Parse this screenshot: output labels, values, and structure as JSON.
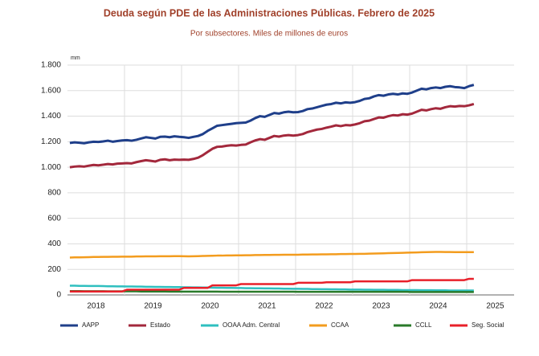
{
  "chart_data": {
    "type": "line",
    "title": "Deuda según PDE de las Administraciones Públicas. Febrero de 2025",
    "subtitle": "Por subsectores. Miles de millones de euros",
    "y_unit": "mm",
    "categories": [
      null,
      null,
      null,
      null,
      null,
      null,
      "2018",
      null,
      null,
      null,
      null,
      null,
      null,
      null,
      null,
      null,
      null,
      null,
      "2019",
      null,
      null,
      null,
      null,
      null,
      null,
      null,
      null,
      null,
      null,
      null,
      "2020",
      null,
      null,
      null,
      null,
      null,
      null,
      null,
      null,
      null,
      null,
      null,
      "2021",
      null,
      null,
      null,
      null,
      null,
      null,
      null,
      null,
      null,
      null,
      null,
      "2022",
      null,
      null,
      null,
      null,
      null,
      null,
      null,
      null,
      null,
      null,
      null,
      "2023",
      null,
      null,
      null,
      null,
      null,
      null,
      null,
      null,
      null,
      null,
      null,
      "2024",
      null,
      null,
      null,
      null,
      null,
      null,
      null,
      null,
      null,
      null,
      null,
      "2025",
      null,
      null,
      null,
      null,
      null
    ],
    "series": [
      {
        "name": "AAPP",
        "color": "#1f3f8a",
        "values": [
          1190,
          1195,
          1192,
          1188,
          1195,
          1200,
          1198,
          1202,
          1208,
          1200,
          1205,
          1210,
          1212,
          1208,
          1215,
          1225,
          1235,
          1230,
          1225,
          1238,
          1240,
          1235,
          1242,
          1238,
          1235,
          1230,
          1238,
          1245,
          1260,
          1285,
          1305,
          1325,
          1330,
          1335,
          1340,
          1345,
          1348,
          1350,
          1365,
          1385,
          1400,
          1395,
          1410,
          1425,
          1420,
          1430,
          1435,
          1430,
          1432,
          1440,
          1455,
          1460,
          1470,
          1480,
          1490,
          1495,
          1505,
          1500,
          1508,
          1505,
          1510,
          1520,
          1535,
          1540,
          1555,
          1565,
          1560,
          1570,
          1575,
          1570,
          1578,
          1575,
          1585,
          1600,
          1615,
          1610,
          1620,
          1625,
          1620,
          1630,
          1635,
          1628,
          1625,
          1620,
          1635,
          1645,
          null,
          null,
          null,
          null,
          null,
          null,
          null,
          null,
          null,
          null
        ]
      },
      {
        "name": "Estado",
        "color": "#a3283c",
        "values": [
          1000,
          1005,
          1008,
          1005,
          1012,
          1018,
          1015,
          1020,
          1025,
          1022,
          1028,
          1030,
          1032,
          1030,
          1040,
          1048,
          1055,
          1050,
          1045,
          1058,
          1062,
          1055,
          1060,
          1058,
          1060,
          1058,
          1065,
          1075,
          1095,
          1120,
          1145,
          1160,
          1162,
          1168,
          1172,
          1170,
          1175,
          1178,
          1195,
          1210,
          1220,
          1215,
          1230,
          1245,
          1240,
          1248,
          1252,
          1248,
          1252,
          1260,
          1275,
          1285,
          1295,
          1300,
          1310,
          1318,
          1328,
          1322,
          1330,
          1328,
          1335,
          1345,
          1360,
          1365,
          1378,
          1390,
          1388,
          1400,
          1408,
          1405,
          1415,
          1412,
          1420,
          1435,
          1450,
          1445,
          1455,
          1462,
          1458,
          1470,
          1478,
          1475,
          1480,
          1478,
          1485,
          1495,
          null,
          null,
          null,
          null,
          null,
          null,
          null,
          null,
          null,
          null
        ]
      },
      {
        "name": "OOAA Adm. Central",
        "color": "#2fbfbf",
        "values": [
          72,
          72,
          71,
          71,
          70,
          70,
          70,
          69,
          68,
          68,
          67,
          67,
          66,
          66,
          65,
          65,
          64,
          64,
          63,
          63,
          62,
          62,
          61,
          61,
          60,
          60,
          59,
          59,
          58,
          58,
          57,
          56,
          56,
          55,
          55,
          54,
          54,
          53,
          53,
          52,
          52,
          51,
          51,
          50,
          50,
          49,
          49,
          48,
          48,
          47,
          47,
          46,
          46,
          45,
          45,
          44,
          44,
          43,
          43,
          42,
          42,
          42,
          41,
          41,
          40,
          40,
          40,
          39,
          39,
          39,
          38,
          38,
          38,
          38,
          37,
          37,
          37,
          36,
          36,
          36,
          35,
          35,
          35,
          35,
          35,
          35,
          null,
          null,
          null,
          null,
          null,
          null,
          null,
          null,
          null,
          null
        ]
      },
      {
        "name": "CCAA",
        "color": "#f39c1e",
        "values": [
          293,
          294,
          294,
          295,
          296,
          297,
          297,
          298,
          298,
          299,
          299,
          300,
          300,
          300,
          301,
          301,
          302,
          302,
          302,
          303,
          303,
          303,
          304,
          304,
          303,
          302,
          303,
          304,
          305,
          306,
          307,
          308,
          308,
          309,
          309,
          310,
          310,
          311,
          311,
          312,
          312,
          313,
          313,
          314,
          314,
          315,
          315,
          315,
          315,
          316,
          316,
          317,
          317,
          318,
          318,
          319,
          319,
          320,
          320,
          321,
          321,
          322,
          322,
          323,
          324,
          325,
          326,
          327,
          328,
          329,
          330,
          331,
          332,
          333,
          334,
          335,
          336,
          337,
          337,
          336,
          336,
          335,
          335,
          335,
          335,
          335,
          null,
          null,
          null,
          null,
          null,
          null,
          null,
          null,
          null,
          null
        ]
      },
      {
        "name": "CCLL",
        "color": "#2a7a2a",
        "values": [
          30,
          30,
          30,
          29,
          29,
          29,
          29,
          29,
          28,
          28,
          28,
          28,
          28,
          28,
          28,
          27,
          27,
          27,
          27,
          27,
          27,
          26,
          26,
          26,
          26,
          26,
          26,
          26,
          26,
          26,
          26,
          26,
          25,
          25,
          25,
          25,
          25,
          25,
          25,
          25,
          25,
          25,
          25,
          25,
          25,
          25,
          25,
          25,
          24,
          24,
          24,
          24,
          24,
          24,
          24,
          24,
          24,
          24,
          24,
          24,
          24,
          24,
          24,
          24,
          24,
          24,
          24,
          24,
          24,
          24,
          24,
          24,
          23,
          23,
          23,
          23,
          23,
          23,
          23,
          23,
          23,
          23,
          23,
          23,
          23,
          23,
          null,
          null,
          null,
          null,
          null,
          null,
          null,
          null,
          null,
          null
        ]
      },
      {
        "name": "Seg. Social",
        "color": "#e8202a",
        "values": [
          27,
          27,
          27,
          27,
          27,
          27,
          27,
          27,
          27,
          27,
          27,
          27,
          41,
          41,
          41,
          41,
          41,
          41,
          41,
          41,
          41,
          41,
          41,
          41,
          55,
          55,
          55,
          55,
          55,
          55,
          75,
          75,
          75,
          75,
          75,
          75,
          85,
          85,
          85,
          85,
          85,
          85,
          85,
          85,
          85,
          85,
          85,
          85,
          95,
          95,
          95,
          95,
          95,
          95,
          99,
          99,
          99,
          99,
          99,
          99,
          106,
          106,
          106,
          106,
          106,
          106,
          106,
          106,
          106,
          106,
          106,
          106,
          116,
          116,
          116,
          116,
          116,
          116,
          116,
          116,
          116,
          116,
          116,
          116,
          126,
          126,
          null,
          null,
          null,
          null,
          null,
          null,
          null,
          null,
          null,
          null
        ]
      }
    ],
    "ylim": [
      0,
      1800
    ],
    "yticks": [
      0,
      200,
      400,
      600,
      800,
      {
        "value": 1000,
        "label": "1.000"
      },
      {
        "value": 1200,
        "label": "1.200"
      },
      {
        "value": 1400,
        "label": "1.400"
      },
      {
        "value": 1600,
        "label": "1.600"
      },
      {
        "value": 1800,
        "label": "1.800"
      }
    ],
    "grid": true,
    "legend": "bottom"
  }
}
